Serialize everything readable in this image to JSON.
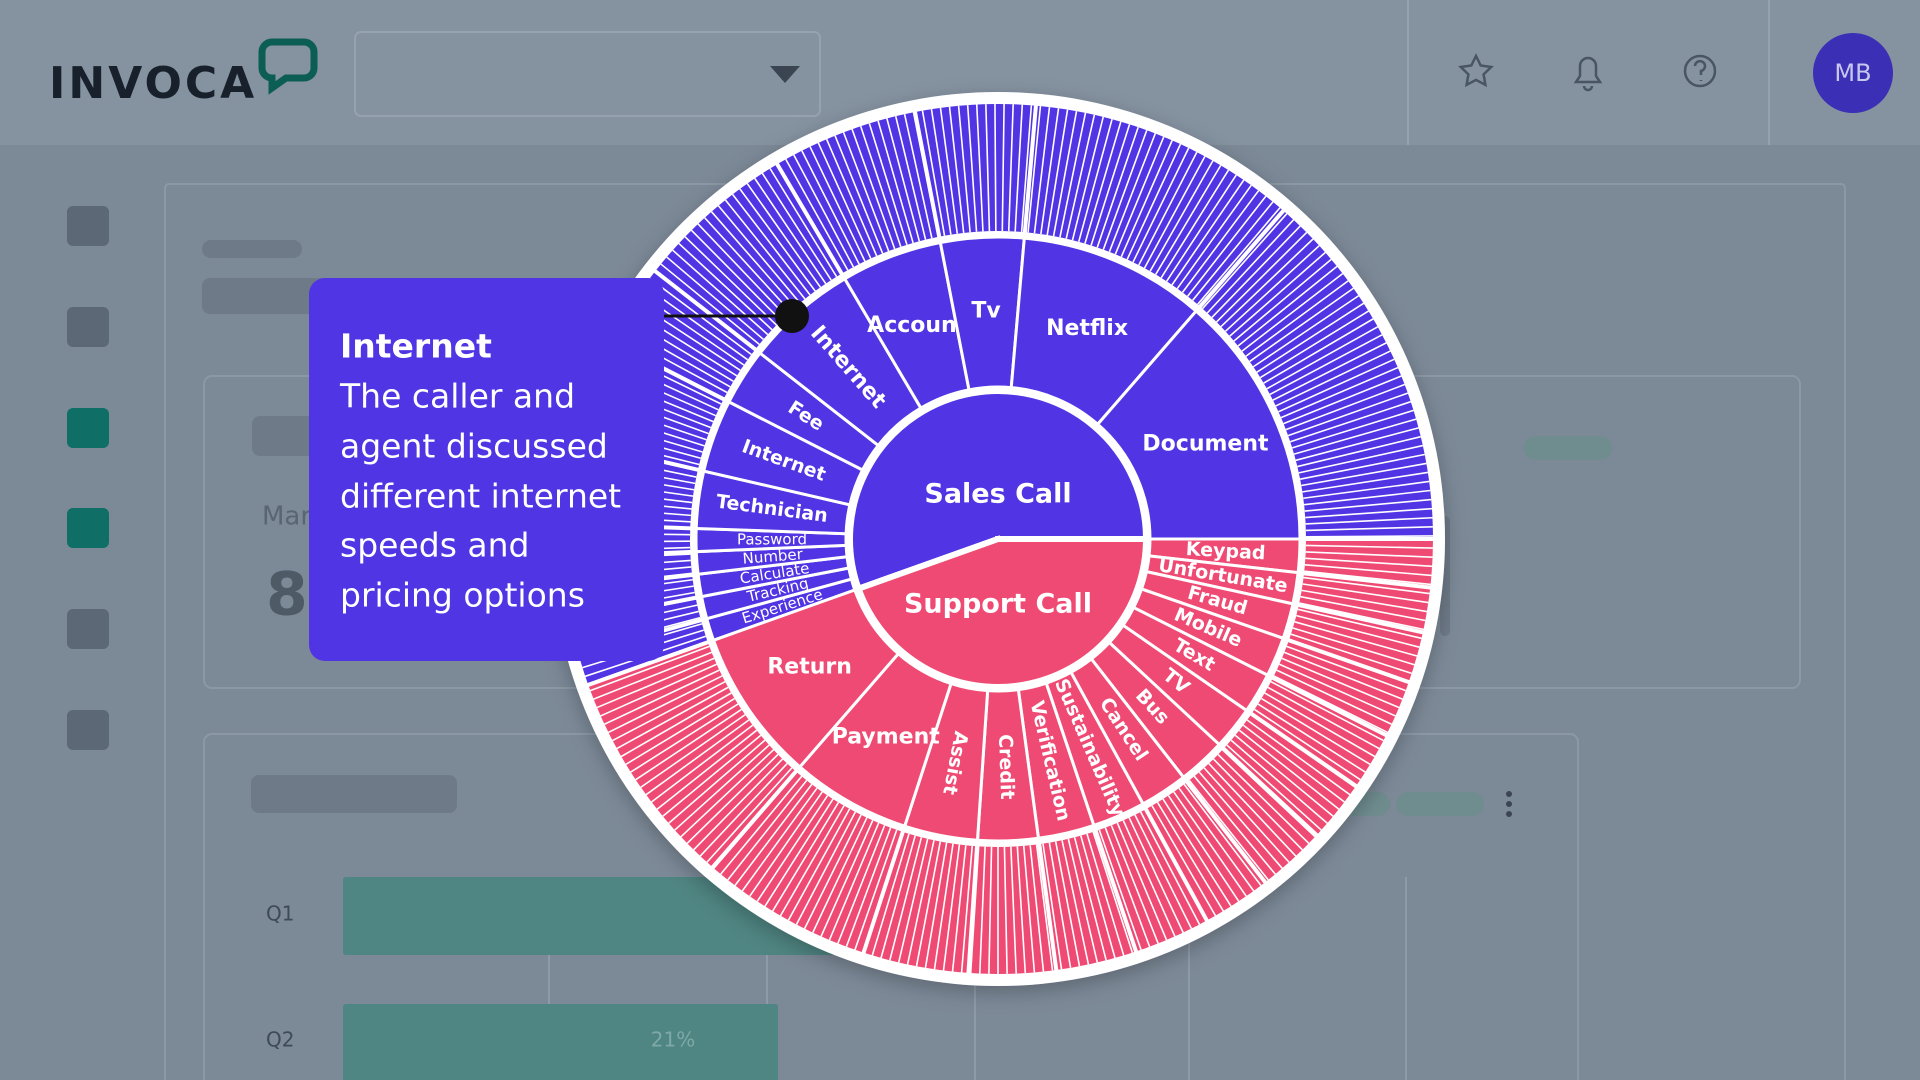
{
  "header": {
    "logo": "INVOCA",
    "avatar": "MB"
  },
  "dashboard": {
    "stat_label": "Mar",
    "stat_value": "8",
    "rows": [
      "Q1",
      "Q2"
    ],
    "bar_label": "21%"
  },
  "sunburst": {
    "center": [
      {
        "label": "Sales Call",
        "children": [
          "Experience",
          "Tracking",
          "Calculate",
          "Number",
          "Password",
          "Technician",
          "Internet",
          "Fee",
          "Internet",
          "Account",
          "Tv",
          "Netflix",
          "Document"
        ]
      },
      {
        "label": "Support Call",
        "children": [
          "Keypad",
          "Unfortunate",
          "Fraud",
          "Mobile",
          "Text",
          "TV",
          "Bus",
          "Cancel",
          "Sustainability",
          "Verification",
          "Credit",
          "Assist",
          "Payment",
          "Return"
        ]
      }
    ]
  },
  "tooltip": {
    "title": "Internet",
    "lines": [
      "The caller and",
      "agent discussed",
      "different internet",
      "speeds and",
      "pricing options"
    ]
  }
}
